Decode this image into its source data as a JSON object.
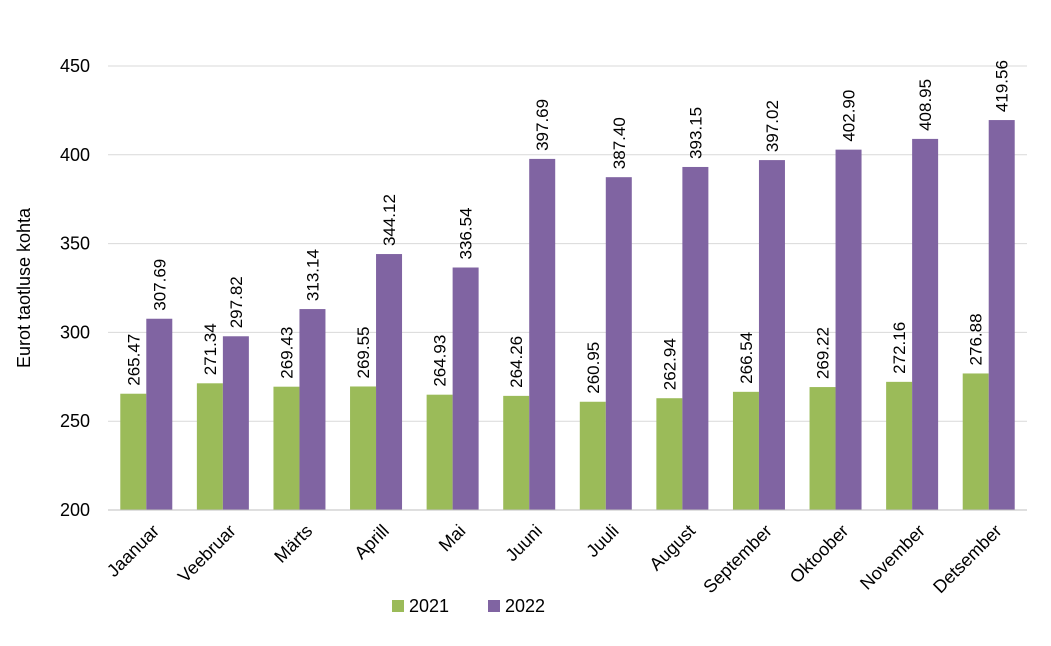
{
  "chart_data": {
    "type": "bar",
    "title": "",
    "xlabel": "",
    "ylabel": "Eurot taotluse kohta",
    "ylim": [
      200,
      450
    ],
    "yticks": [
      200,
      250,
      300,
      350,
      400,
      450
    ],
    "grid": true,
    "legend_position": "bottom",
    "categories": [
      "Jaanuar",
      "Veebruar",
      "Märts",
      "Aprill",
      "Mai",
      "Juuni",
      "Juuli",
      "August",
      "September",
      "Oktoober",
      "November",
      "Detsember"
    ],
    "series": [
      {
        "name": "2021",
        "color": "#9bbb59",
        "values": [
          265.47,
          271.34,
          269.43,
          269.55,
          264.93,
          264.26,
          260.95,
          262.94,
          266.54,
          269.22,
          272.16,
          276.88
        ],
        "labels": [
          "265.47",
          "271.34",
          "269.43",
          "269.55",
          "264.93",
          "264.26",
          "260.95",
          "262.94",
          "266.54",
          "269.22",
          "272.16",
          "276.88"
        ]
      },
      {
        "name": "2022",
        "color": "#8064a2",
        "values": [
          307.69,
          297.82,
          313.14,
          344.12,
          336.54,
          397.69,
          387.4,
          393.15,
          397.02,
          402.9,
          408.95,
          419.56
        ],
        "labels": [
          "307.69",
          "297.82",
          "313.14",
          "344.12",
          "336.54",
          "397.69",
          "387.40",
          "393.15",
          "397.02",
          "402.90",
          "408.95",
          "419.56"
        ]
      }
    ]
  }
}
